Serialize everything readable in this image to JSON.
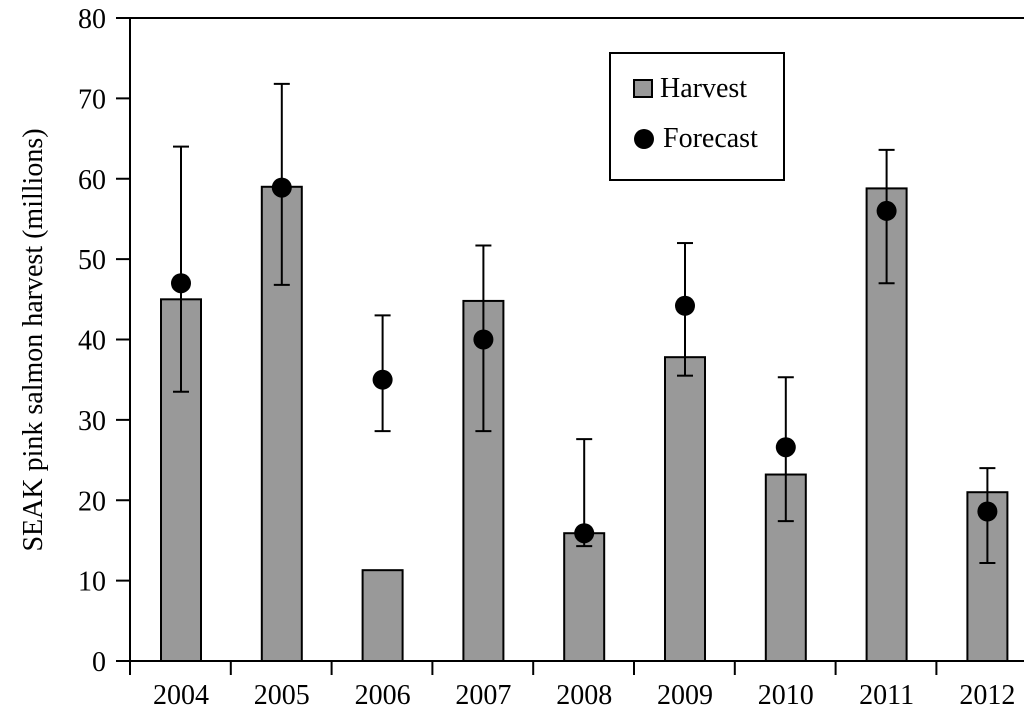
{
  "chart_data": {
    "type": "bar",
    "title": "",
    "xlabel": "",
    "ylabel": "SEAK pink salmon harvest (millions)",
    "ylim": [
      0,
      80
    ],
    "yticks": [
      0,
      10,
      20,
      30,
      40,
      50,
      60,
      70,
      80
    ],
    "categories": [
      "2004",
      "2005",
      "2006",
      "2007",
      "2008",
      "2009",
      "2010",
      "2011",
      "2012"
    ],
    "series": [
      {
        "name": "Harvest",
        "kind": "bar",
        "color": "#999999",
        "values": [
          45.0,
          59.0,
          11.3,
          44.8,
          15.9,
          37.8,
          23.2,
          58.8,
          21.0
        ]
      },
      {
        "name": "Forecast",
        "kind": "point",
        "color": "#000000",
        "values": [
          47.0,
          58.9,
          35.0,
          40.0,
          15.9,
          44.2,
          26.6,
          56.0,
          18.6
        ],
        "error_low": [
          33.5,
          46.8,
          28.6,
          28.6,
          14.3,
          35.5,
          17.4,
          47.0,
          12.2
        ],
        "error_high": [
          64.0,
          71.8,
          43.0,
          51.7,
          27.6,
          52.0,
          35.3,
          63.6,
          24.0
        ]
      }
    ],
    "legend": {
      "placement": "top-center-right",
      "entries": [
        {
          "label": "Harvest",
          "symbol": "bar"
        },
        {
          "label": "Forecast",
          "symbol": "point"
        }
      ]
    },
    "grid": false
  }
}
